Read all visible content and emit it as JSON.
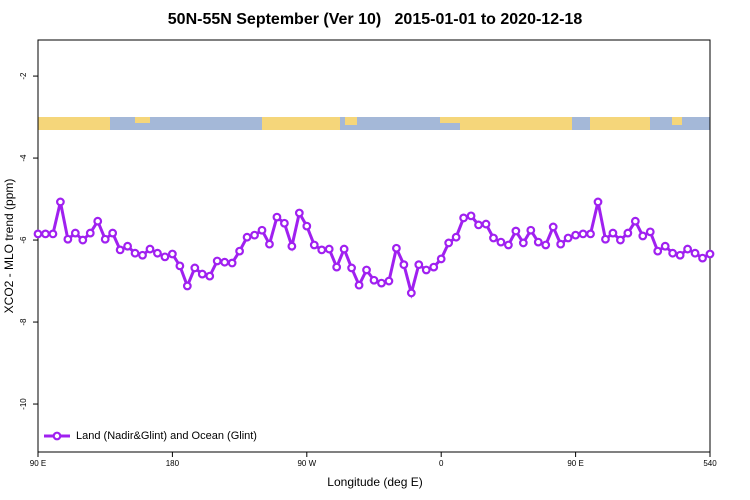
{
  "chart_data": {
    "type": "line",
    "title": "50N-55N September (Ver 10)   2015-01-01 to 2020-12-18",
    "x_label": "Longitude (deg E)",
    "y_label": "XCO2 - MLO trend (ppm)",
    "x": [
      90,
      95,
      100,
      105,
      110,
      115,
      120,
      125,
      130,
      135,
      140,
      145,
      150,
      155,
      160,
      165,
      170,
      175,
      180,
      185,
      190,
      195,
      200,
      205,
      210,
      215,
      220,
      225,
      230,
      235,
      240,
      245,
      250,
      255,
      260,
      265,
      270,
      275,
      280,
      285,
      290,
      295,
      300,
      305,
      310,
      315,
      320,
      325,
      330,
      335,
      340,
      345,
      350,
      355,
      360,
      365,
      370,
      375,
      380,
      385,
      390,
      395,
      400,
      405,
      410,
      415,
      420,
      425,
      430,
      435,
      440,
      445,
      450,
      455,
      460,
      465,
      470,
      475,
      480,
      485,
      490,
      495,
      500,
      505,
      510,
      515,
      520,
      525,
      530,
      535,
      540
    ],
    "series": [
      {
        "name": "Land (Nadir&Glint) and Ocean (Glint)",
        "color": "#a020f0",
        "values": [
          -5.85,
          -5.85,
          -5.85,
          -5.07,
          -5.98,
          -5.83,
          -6.0,
          -5.83,
          -5.54,
          -5.98,
          -5.83,
          -6.24,
          -6.15,
          -6.32,
          -6.37,
          -6.22,
          -6.32,
          -6.41,
          -6.34,
          -6.63,
          -7.12,
          -6.68,
          -6.83,
          -6.88,
          -6.51,
          -6.54,
          -6.56,
          -6.27,
          -5.93,
          -5.88,
          -5.76,
          -6.1,
          -5.44,
          -5.59,
          -6.15,
          -5.34,
          -5.66,
          -6.12,
          -6.24,
          -6.22,
          -6.66,
          -6.22,
          -6.68,
          -7.1,
          -6.73,
          -6.98,
          -7.05,
          -7.0,
          -6.2,
          -6.6,
          -7.29,
          -6.6,
          -6.73,
          -6.66,
          -6.46,
          -6.07,
          -5.93,
          -5.46,
          -5.41,
          -5.63,
          -5.61,
          -5.95,
          -6.05,
          -6.12,
          -5.78,
          -6.07,
          -5.76,
          -6.05,
          -6.12,
          -5.68,
          -6.1,
          -5.95,
          -5.88,
          -5.85,
          -5.85,
          -5.07,
          -5.98,
          -5.83,
          -6.0,
          -5.83,
          -5.54,
          -5.9,
          -5.8,
          -6.27,
          -6.15,
          -6.32,
          -6.37,
          -6.22,
          -6.32,
          -6.44,
          -6.34
        ]
      }
    ],
    "xlim": [
      90,
      540
    ],
    "xticks": [
      {
        "value": 90,
        "label": "90 E"
      },
      180,
      {
        "value": 270,
        "label": "90 W"
      },
      {
        "value": 360,
        "label": "0"
      },
      {
        "value": 450,
        "label": "90 E"
      },
      540
    ],
    "ylim": [
      -11.17,
      -1.12
    ],
    "yticks": [
      -10,
      -8,
      -6,
      -4,
      -2
    ],
    "legend": "lower left"
  }
}
